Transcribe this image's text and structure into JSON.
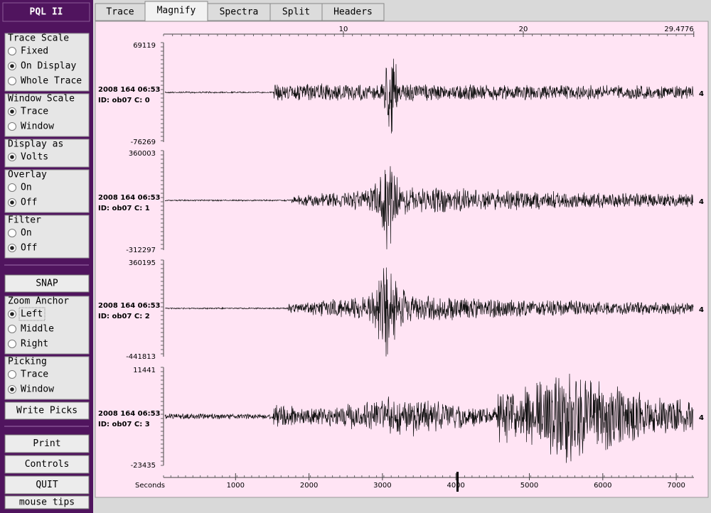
{
  "sidebar": {
    "title": "PQL II",
    "groups": [
      {
        "label": "Trace Scale",
        "options": [
          "Fixed",
          "On Display",
          "Whole Trace"
        ],
        "selected": 1
      },
      {
        "label": "Window Scale",
        "options": [
          "Trace",
          "Window"
        ],
        "selected": 0
      },
      {
        "label": "Display as",
        "options": [
          "Volts"
        ],
        "selected": 0
      },
      {
        "label": "Overlay",
        "options": [
          "On",
          "Off"
        ],
        "selected": 1
      },
      {
        "label": "Filter",
        "options": [
          "On",
          "Off"
        ],
        "selected": 1
      }
    ],
    "snap": "SNAP",
    "groups2": [
      {
        "label": "Zoom Anchor",
        "options": [
          "Left",
          "Middle",
          "Right"
        ],
        "selected": 0
      },
      {
        "label": "Picking",
        "options": [
          "Trace",
          "Window"
        ],
        "selected": 1
      }
    ],
    "write_picks": "Write Picks",
    "buttons": [
      "Print",
      "Controls",
      "QUIT"
    ],
    "mouse_tips": "mouse tips"
  },
  "tabs": {
    "items": [
      "Trace",
      "Magnify",
      "Spectra",
      "Split",
      "Headers"
    ],
    "selected": 1
  },
  "plot": {
    "top_axis": {
      "ticks": [
        10,
        20,
        29.4776
      ]
    },
    "bottom_axis": {
      "label": "Seconds",
      "ticks": [
        1000,
        2000,
        3000,
        4000,
        5000,
        6000,
        7000
      ]
    },
    "traces": [
      {
        "max": 69119,
        "min": -76269,
        "date": "2008 164 06:53",
        "id": "ID: ob07 C: 0",
        "marker": "4"
      },
      {
        "max": 360003,
        "min": -312297,
        "date": "2008 164 06:53",
        "id": "ID: ob07 C: 1",
        "marker": "4"
      },
      {
        "max": 360195,
        "min": -441813,
        "date": "2008 164 06:53",
        "id": "ID: ob07 C: 2",
        "marker": "4"
      },
      {
        "max": 11441,
        "min": -23435,
        "date": "2008 164 06:53",
        "id": "ID: ob07 C: 3",
        "marker": "4"
      }
    ]
  }
}
